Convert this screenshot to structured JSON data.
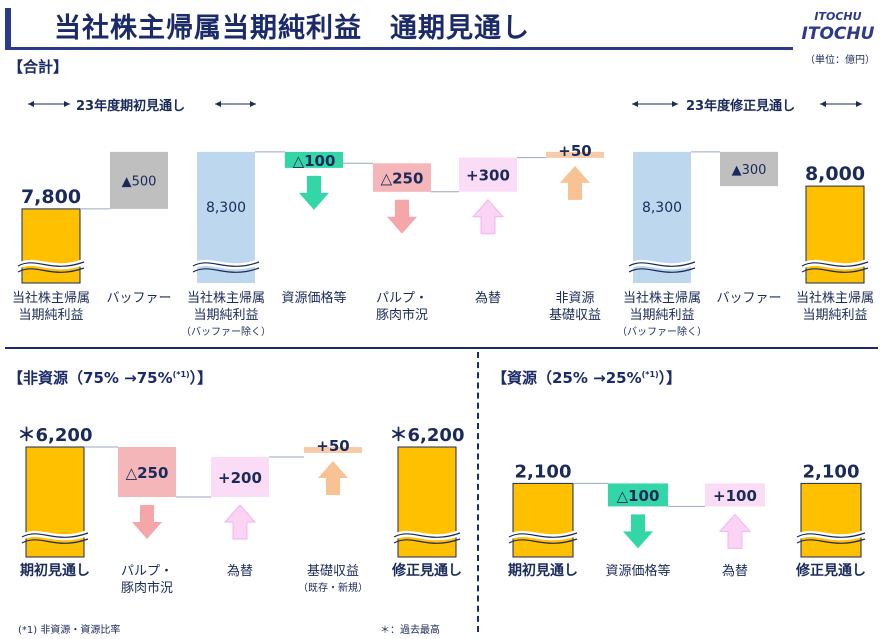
{
  "header": {
    "title": "当社株主帰属当期純利益　通期見通し",
    "logo_top": "ITOCHU",
    "logo_bottom": "ITOCHU"
  },
  "unit_note": "（単位：億円）",
  "top": {
    "section_title": "【合計】",
    "initial_range_label": "23年度期初見通し",
    "revised_range_label": "23年度修正見通し",
    "categories": [
      {
        "label": "当社株主帰属\n当期純利益",
        "sub": ""
      },
      {
        "label": "バッファー",
        "sub": ""
      },
      {
        "label": "当社株主帰属\n当期純利益",
        "sub": "（バッファー除く）"
      },
      {
        "label": "資源価格等",
        "sub": ""
      },
      {
        "label": "パルプ・\n豚肉市況",
        "sub": ""
      },
      {
        "label": "為替",
        "sub": ""
      },
      {
        "label": "非資源\n基礎収益",
        "sub": ""
      },
      {
        "label": "当社株主帰属\n当期純利益",
        "sub": "（バッファー除く）"
      },
      {
        "label": "バッファー",
        "sub": ""
      },
      {
        "label": "当社株主帰属\n当期純利益",
        "sub": ""
      }
    ]
  },
  "bottom_left": {
    "section_title": "【非資源（75% →75%",
    "section_sup": "(*1)",
    "section_close": "）】",
    "categories": [
      {
        "label": "期初見通し",
        "sub": "",
        "bold": true
      },
      {
        "label": "パルプ・\n豚肉市況",
        "sub": "",
        "bold": false
      },
      {
        "label": "為替",
        "sub": "",
        "bold": false
      },
      {
        "label": "基礎収益",
        "sub": "（既存・新規）",
        "bold": false
      },
      {
        "label": "修正見通し",
        "sub": "",
        "bold": true
      }
    ]
  },
  "bottom_right": {
    "section_title": "【資源（25% →25%",
    "section_sup": "(*1)",
    "section_close": "）】",
    "categories": [
      {
        "label": "期初見通し",
        "bold": true
      },
      {
        "label": "資源価格等",
        "bold": false
      },
      {
        "label": "為替",
        "bold": false
      },
      {
        "label": "修正見通し",
        "bold": true
      }
    ]
  },
  "footnotes": {
    "left": "(*1) 非資源・資源比率",
    "right": "＊：過去最高"
  },
  "colors": {
    "total": "#ffc000",
    "buffer": "#bfbfbf",
    "excl_buffer": "#bdd7ee",
    "negative": "#f4b6b9",
    "negative_arrow": "#f4a6a9",
    "positive": "#fbdcf6",
    "positive_arrow": "#fbd3f4",
    "resource_neg": "#33d6a6",
    "resource_arrow": "#33d6a6",
    "base_pos": "#f8cba8",
    "base_arrow": "#f8c394"
  },
  "chart_data": [
    {
      "type": "bar",
      "title": "【合計】",
      "categories": [
        "当社株主帰属当期純利益",
        "バッファー",
        "当社株主帰属当期純利益（バッファー除く）",
        "資源価格等",
        "パルプ・豚肉市況",
        "為替",
        "非資源基礎収益",
        "当社株主帰属当期純利益（バッファー除く）",
        "バッファー",
        "当社株主帰属当期純利益"
      ],
      "values": [
        7800,
        500,
        8300,
        -100,
        -250,
        300,
        50,
        8300,
        -300,
        8000
      ],
      "value_labels": [
        "7,800",
        "▲500",
        "8,300",
        "△100",
        "△250",
        "+300",
        "+50",
        "8,300",
        "▲300",
        "8,000"
      ],
      "kinds": [
        "total",
        "buffer",
        "excl_buffer",
        "resource",
        "negative",
        "positive",
        "base",
        "excl_buffer",
        "buffer",
        "total"
      ],
      "ylim": [
        7150,
        8450
      ]
    },
    {
      "type": "bar",
      "title": "【非資源（75% →75%(*1)）】",
      "categories": [
        "期初見通し",
        "パルプ・豚肉市況",
        "為替",
        "基礎収益（既存・新規）",
        "修正見通し"
      ],
      "values": [
        6200,
        -250,
        200,
        50,
        6200
      ],
      "value_labels": [
        "＊6,200",
        "△250",
        "+200",
        "+50",
        "＊6,200"
      ],
      "kinds": [
        "total",
        "negative",
        "positive",
        "base",
        "total"
      ],
      "ylim": [
        5650,
        6250
      ]
    },
    {
      "type": "bar",
      "title": "【資源（25% →25%(*1)）】",
      "categories": [
        "期初見通し",
        "資源価格等",
        "為替",
        "修正見通し"
      ],
      "values": [
        2100,
        -100,
        100,
        2100
      ],
      "value_labels": [
        "2,100",
        "△100",
        "+100",
        "2,100"
      ],
      "kinds": [
        "total",
        "resource",
        "positive",
        "total"
      ],
      "ylim": [
        1780,
        2140
      ]
    }
  ]
}
